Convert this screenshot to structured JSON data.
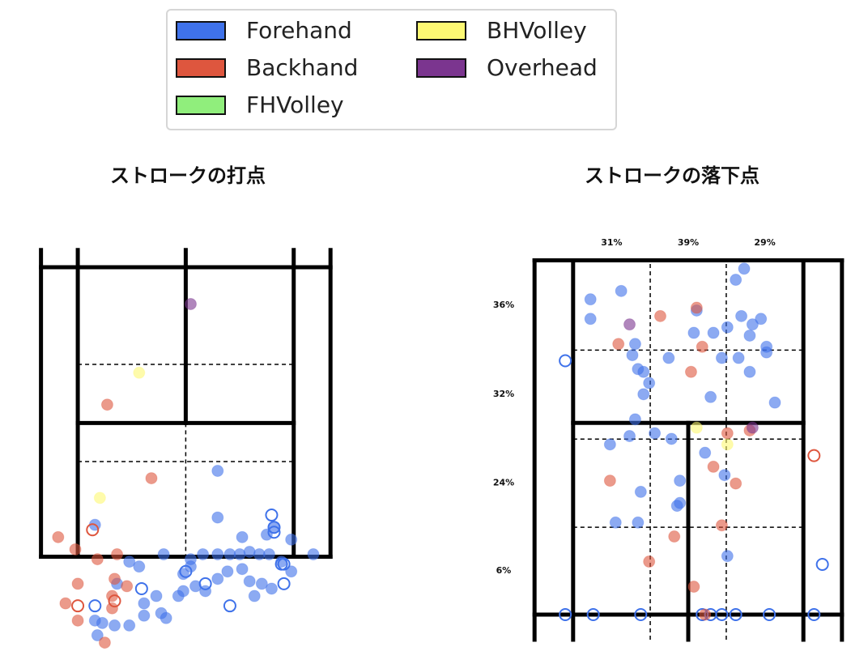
{
  "legend": {
    "entries": [
      {
        "name": "Forehand",
        "color": "#3f72ea"
      },
      {
        "name": "Backhand",
        "color": "#de563e"
      },
      {
        "name": "FHVolley",
        "color": "#90ee7c"
      },
      {
        "name": "BHVolley",
        "color": "#fdf873"
      },
      {
        "name": "Overhead",
        "color": "#7b358f"
      }
    ]
  },
  "chart_data": [
    {
      "type": "scatter",
      "title": "ストロークの打点",
      "xlim": [
        -6.3,
        6.3
      ],
      "ylim": [
        15.6,
        -0.7
      ],
      "series": [
        {
          "color": "#3f72ea",
          "marker": "filled",
          "x": [
            1.3,
            1.3,
            2.3,
            3.3,
            3.6,
            4.3,
            5.2,
            -3.7,
            -0.9,
            0.2,
            0.7,
            1.3,
            1.8,
            2.2,
            2.6,
            3.0,
            3.4,
            3.9,
            4.3,
            0.2,
            -0.1,
            0.4,
            0.8,
            1.3,
            1.7,
            2.3,
            2.6,
            3.1,
            3.5,
            2.8,
            -0.3,
            -0.1,
            -1.2,
            -1.7,
            -1.7,
            -1.0,
            -0.8,
            -2.3,
            -2.9,
            -3.4,
            -3.7,
            -3.6,
            -2.8,
            -2.3,
            -1.9
          ],
          "y": [
            8.3,
            10.2,
            11.0,
            10.9,
            10.6,
            11.1,
            11.7,
            10.5,
            11.7,
            11.9,
            11.7,
            11.7,
            11.7,
            11.7,
            11.6,
            11.7,
            11.7,
            12.0,
            12.4,
            12.2,
            12.5,
            13.0,
            13.2,
            12.7,
            12.4,
            12.3,
            12.8,
            12.9,
            13.1,
            13.4,
            13.4,
            13.2,
            13.4,
            13.7,
            14.2,
            14.1,
            14.3,
            14.6,
            14.6,
            14.5,
            14.4,
            15.0,
            12.9,
            12.0,
            12.2
          ]
        },
        {
          "color": "#3f72ea",
          "marker": "hollow",
          "x": [
            3.5,
            3.6,
            3.6,
            3.9,
            4.0,
            4.0,
            0.8,
            0.0,
            -1.8,
            -3.7,
            1.8
          ],
          "y": [
            10.1,
            10.6,
            10.8,
            12.1,
            12.1,
            12.9,
            12.9,
            12.4,
            13.1,
            13.8,
            13.8
          ]
        },
        {
          "color": "#de563e",
          "marker": "filled",
          "x": [
            -3.2,
            -1.4,
            -5.2,
            -4.5,
            -3.6,
            -2.8,
            -4.4,
            -2.9,
            -2.4,
            -3.0,
            -4.9,
            -3.0,
            -4.4,
            -3.3
          ],
          "y": [
            5.6,
            8.6,
            11.0,
            11.5,
            11.9,
            11.7,
            12.9,
            12.7,
            13.0,
            13.4,
            13.7,
            13.9,
            14.4,
            15.3
          ]
        },
        {
          "color": "#de563e",
          "marker": "hollow",
          "x": [
            -3.8,
            -4.4,
            -2.9
          ],
          "y": [
            10.7,
            13.8,
            13.6
          ]
        },
        {
          "color": "#fdf873",
          "marker": "filled",
          "x": [
            -1.9,
            -3.5
          ],
          "y": [
            4.3,
            9.4
          ]
        },
        {
          "color": "#7b358f",
          "marker": "filled",
          "x": [
            0.2
          ],
          "y": [
            1.5
          ]
        }
      ]
    },
    {
      "type": "scatter",
      "title": "ストロークの落下点",
      "xlim": [
        -5.65,
        5.65
      ],
      "ylim": [
        -0.9,
        12.8
      ],
      "annotations": {
        "columns": [
          "31%",
          "39%",
          "29%"
        ],
        "rows": [
          "36%",
          "32%",
          "24%",
          "6%"
        ]
      },
      "series": [
        {
          "color": "#3f72ea",
          "marker": "filled",
          "x": [
            2.0,
            1.7,
            -2.4,
            -3.5,
            -3.5,
            0.3,
            1.9,
            2.6,
            2.3,
            1.4,
            0.9,
            0.2,
            2.2,
            -1.9,
            2.8,
            2.8,
            -2.0,
            -0.7,
            1.8,
            1.2,
            -1.8,
            -1.6,
            -1.4,
            2.2,
            -1.6,
            0.8,
            3.1,
            -1.9,
            -2.1,
            -1.2,
            -0.6,
            -2.8,
            0.6,
            1.3,
            -0.3,
            -1.7,
            -0.3,
            -0.4,
            -2.6,
            -1.8,
            1.4
          ],
          "y": [
            12.4,
            12.0,
            11.6,
            11.3,
            10.6,
            10.9,
            10.7,
            10.6,
            10.4,
            10.3,
            10.1,
            10.1,
            10.0,
            9.7,
            9.6,
            9.4,
            9.3,
            9.2,
            9.2,
            9.2,
            8.8,
            8.7,
            8.3,
            8.7,
            7.9,
            7.8,
            7.6,
            7.0,
            6.4,
            6.5,
            6.3,
            6.1,
            5.8,
            5.0,
            4.8,
            4.4,
            4.0,
            3.9,
            3.3,
            3.3,
            2.1
          ]
        },
        {
          "color": "#3f72ea",
          "marker": "hollow",
          "x": [
            -4.4,
            4.8,
            -4.4,
            -3.4,
            -1.7,
            0.5,
            0.8,
            1.2,
            1.7,
            2.9,
            4.5
          ],
          "y": [
            9.1,
            1.8,
            0.0,
            0.0,
            0.0,
            0.0,
            0.0,
            0.0,
            0.0,
            0.0,
            0.0
          ]
        },
        {
          "color": "#de563e",
          "marker": "filled",
          "x": [
            -1.0,
            0.3,
            -2.5,
            0.5,
            0.1,
            1.4,
            2.2,
            0.9,
            -2.8,
            1.7,
            1.2,
            -0.5,
            -1.4,
            0.2,
            0.6
          ],
          "y": [
            10.7,
            11.0,
            9.7,
            9.6,
            8.7,
            6.5,
            6.6,
            5.3,
            4.8,
            4.7,
            3.2,
            2.8,
            1.9,
            1.0,
            0.0
          ]
        },
        {
          "color": "#de563e",
          "marker": "hollow",
          "x": [
            4.5
          ],
          "y": [
            5.7
          ]
        },
        {
          "color": "#fdf873",
          "marker": "filled",
          "x": [
            0.3,
            1.4
          ],
          "y": [
            6.7,
            6.1
          ]
        },
        {
          "color": "#7b358f",
          "marker": "filled",
          "x": [
            -2.1,
            2.3
          ],
          "y": [
            10.4,
            6.7
          ]
        }
      ]
    }
  ]
}
